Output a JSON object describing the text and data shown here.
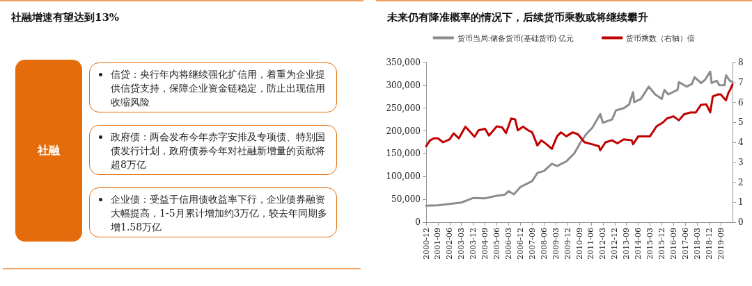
{
  "chart_data": [
    {
      "type": "other",
      "title": "社融增速有望达到13%",
      "annotations": [
        "社融",
        "信贷：央行年内将继续强化扩信用，着重为企业提供信贷支持，保障企业资金链稳定，防止出现信用收缩风险",
        "政府债：两会发布今年赤字安排及专项债、特别国债发行计划，政府债券今年对社融新增量的贡献将超8万亿",
        "企业债：受益于信用债收益率下行，企业债券融资大幅提高，1-5月累计增加约3万亿，较去年同期多增1.58万亿"
      ]
    },
    {
      "type": "line",
      "title": "未来仍有降准概率的情况下，后续货币乘数或将继续攀升",
      "legend": "top",
      "marker": "none",
      "grid": false,
      "xlim": [
        "2000-12",
        "2020-06"
      ],
      "xticks": [
        "2000-12",
        "2001-09",
        "2002-06",
        "2003-03",
        "2003-12",
        "2004-09",
        "2005-06",
        "2006-03",
        "2006-12",
        "2007-09",
        "2008-06",
        "2009-03",
        "2009-12",
        "2010-09",
        "2011-06",
        "2012-03",
        "2012-12",
        "2013-09",
        "2014-06",
        "2015-03",
        "2015-12",
        "2016-09",
        "2017-06",
        "2018-03",
        "2018-12",
        "2019-09"
      ],
      "ylim": [
        0,
        350000
      ],
      "yticks": [
        {
          "value": 0,
          "label": "0"
        },
        {
          "value": 50000,
          "label": "50,000"
        },
        {
          "value": 100000,
          "label": "100,000"
        },
        {
          "value": 150000,
          "label": "150,000"
        },
        {
          "value": 200000,
          "label": "200,000"
        },
        {
          "value": 250000,
          "label": "250,000"
        },
        {
          "value": 300000,
          "label": "300,000"
        },
        {
          "value": 350000,
          "label": "350,000"
        }
      ],
      "y2lim": [
        0,
        8
      ],
      "y2ticks": [
        0,
        1,
        2,
        3,
        4,
        5,
        6,
        7,
        8
      ],
      "series": [
        {
          "name": "货币当局:储备货币(基础货币) 亿元",
          "color": "#8c8c8c",
          "x": [
            "2000-12",
            "2001-09",
            "2002-06",
            "2003-03",
            "2003-12",
            "2004-09",
            "2005-06",
            "2005-12",
            "2006-03",
            "2006-07",
            "2006-12",
            "2007-09",
            "2008-01",
            "2008-06",
            "2008-12",
            "2009-04",
            "2009-11",
            "2010-05",
            "2010-10",
            "2011-02",
            "2011-07",
            "2012-01",
            "2012-03",
            "2012-10",
            "2013-01",
            "2013-07",
            "2013-11",
            "2014-02",
            "2014-03",
            "2014-08",
            "2015-02",
            "2015-07",
            "2015-12",
            "2016-02",
            "2016-05",
            "2016-12",
            "2017-01",
            "2017-07",
            "2017-11",
            "2018-01",
            "2018-06",
            "2018-09",
            "2019-01",
            "2019-02",
            "2019-06",
            "2019-08",
            "2019-12",
            "2020-01",
            "2020-04",
            "2020-06"
          ],
          "values": [
            36000,
            37000,
            40000,
            43000,
            53000,
            52000,
            58000,
            60000,
            68000,
            61000,
            77000,
            90000,
            108000,
            112000,
            128000,
            123000,
            133000,
            150000,
            175000,
            192000,
            207000,
            237000,
            218000,
            225000,
            245000,
            250000,
            258000,
            285000,
            263000,
            270000,
            297000,
            280000,
            270000,
            290000,
            280000,
            290000,
            307000,
            297000,
            303000,
            318000,
            305000,
            312000,
            330000,
            305000,
            310000,
            300000,
            300000,
            322000,
            310000,
            307000
          ]
        },
        {
          "name": "货币乘数（右轴）倍",
          "color": "#c00000",
          "axis": "y2",
          "x": [
            "2000-12",
            "2001-03",
            "2001-06",
            "2001-09",
            "2002-01",
            "2002-06",
            "2002-09",
            "2003-01",
            "2003-06",
            "2004-01",
            "2004-04",
            "2004-09",
            "2004-12",
            "2005-06",
            "2005-10",
            "2006-01",
            "2006-05",
            "2006-08",
            "2006-10",
            "2007-02",
            "2007-06",
            "2007-09",
            "2008-01",
            "2008-04",
            "2008-08",
            "2008-12",
            "2009-04",
            "2009-07",
            "2009-11",
            "2010-04",
            "2010-08",
            "2011-01",
            "2011-07",
            "2011-12",
            "2012-01",
            "2012-05",
            "2012-10",
            "2013-02",
            "2013-07",
            "2014-01",
            "2014-02",
            "2014-06",
            "2015-03",
            "2015-08",
            "2016-01",
            "2016-04",
            "2016-09",
            "2017-01",
            "2017-05",
            "2017-10",
            "2018-02",
            "2018-06",
            "2018-10",
            "2019-01",
            "2019-03",
            "2019-07",
            "2019-09",
            "2020-01",
            "2020-03",
            "2020-04",
            "2020-06"
          ],
          "values": [
            3.8,
            4.1,
            4.2,
            4.2,
            4.0,
            4.15,
            4.45,
            4.2,
            4.78,
            4.28,
            4.6,
            4.68,
            4.34,
            4.8,
            4.75,
            4.46,
            5.19,
            5.15,
            4.6,
            4.78,
            4.6,
            4.5,
            3.84,
            4.1,
            3.9,
            3.67,
            4.3,
            4.5,
            4.3,
            4.5,
            4.4,
            4.0,
            3.9,
            3.8,
            3.6,
            4.0,
            4.1,
            3.95,
            4.15,
            4.1,
            3.9,
            4.3,
            4.3,
            4.8,
            5.0,
            5.2,
            5.3,
            5.1,
            5.4,
            5.5,
            5.5,
            5.88,
            5.9,
            5.5,
            6.3,
            6.4,
            6.4,
            6.1,
            6.5,
            6.6,
            6.9
          ]
        }
      ]
    }
  ]
}
